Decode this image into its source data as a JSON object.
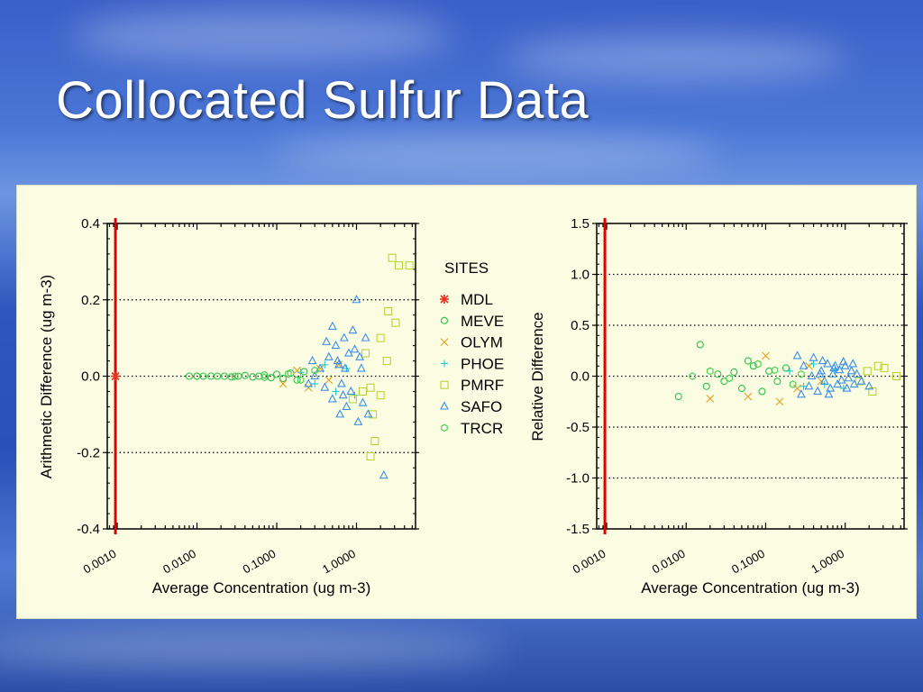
{
  "title": "Collocated Sulfur Data",
  "colors": {
    "MDL": "#e8321e",
    "MEVE": "#2ec04a",
    "OLYM": "#e0a020",
    "PHOE": "#20c8d0",
    "PMRF": "#b8d43a",
    "SAFO": "#3c8ee8",
    "TRCR": "#44cc4c",
    "mdl_line": "#e00000"
  },
  "legend": {
    "title": "SITES",
    "items": [
      {
        "name": "MDL",
        "marker": "asterisk"
      },
      {
        "name": "MEVE",
        "marker": "circle"
      },
      {
        "name": "OLYM",
        "marker": "x"
      },
      {
        "name": "PHOE",
        "marker": "plus"
      },
      {
        "name": "PMRF",
        "marker": "square"
      },
      {
        "name": "SAFO",
        "marker": "triangle"
      },
      {
        "name": "TRCR",
        "marker": "hexagon"
      }
    ]
  },
  "chart_data": [
    {
      "type": "scatter",
      "xlabel": "Average Concentration (ug m-3)",
      "ylabel": "Arithmetic Difference (ug m-3)",
      "xscale": "log",
      "xlim": [
        0.00075,
        5.5
      ],
      "ylim": [
        -0.4,
        0.4
      ],
      "yticks": [
        "0.4",
        "0.2",
        "0.0",
        "-0.2",
        "-0.4"
      ],
      "xticks": [
        "0.0010",
        "0.0100",
        "0.1000",
        "1.0000"
      ],
      "grid": "horizontal dotted",
      "mdl_x": 0.00095,
      "series": [
        {
          "name": "MDL",
          "points": [
            [
              0.00095,
              0.0
            ]
          ]
        },
        {
          "name": "MEVE",
          "points": [
            [
              0.008,
              0.0
            ],
            [
              0.01,
              0.0
            ],
            [
              0.012,
              0.0
            ],
            [
              0.015,
              0.0
            ],
            [
              0.018,
              0.0
            ],
            [
              0.022,
              0.0
            ],
            [
              0.027,
              -0.002
            ],
            [
              0.033,
              0.0
            ],
            [
              0.04,
              0.002
            ],
            [
              0.05,
              -0.002
            ],
            [
              0.06,
              0.0
            ],
            [
              0.07,
              0.003
            ],
            [
              0.085,
              -0.004
            ],
            [
              0.1,
              0.005
            ],
            [
              0.12,
              -0.006
            ],
            [
              0.15,
              0.008
            ],
            [
              0.18,
              -0.01
            ],
            [
              0.22,
              0.012
            ]
          ]
        },
        {
          "name": "OLYM",
          "points": [
            [
              0.12,
              -0.02
            ],
            [
              0.18,
              0.015
            ],
            [
              0.25,
              -0.03
            ],
            [
              0.35,
              0.02
            ],
            [
              0.45,
              -0.01
            ],
            [
              0.6,
              0.03
            ]
          ]
        },
        {
          "name": "PHOE",
          "points": [
            [
              0.2,
              0.01
            ],
            [
              0.3,
              -0.02
            ],
            [
              0.4,
              0.03
            ],
            [
              0.55,
              -0.04
            ],
            [
              0.75,
              0.02
            ],
            [
              0.95,
              -0.05
            ]
          ]
        },
        {
          "name": "PMRF",
          "points": [
            [
              2.8,
              0.31
            ],
            [
              3.4,
              0.29
            ],
            [
              4.6,
              0.29
            ],
            [
              2.5,
              0.17
            ],
            [
              3.1,
              0.14
            ],
            [
              2.0,
              0.1
            ],
            [
              1.6,
              -0.1
            ],
            [
              1.7,
              -0.17
            ],
            [
              1.5,
              -0.21
            ],
            [
              2.4,
              0.04
            ],
            [
              1.3,
              0.06
            ],
            [
              1.5,
              -0.03
            ],
            [
              2.0,
              -0.05
            ],
            [
              1.2,
              -0.04
            ],
            [
              0.9,
              -0.06
            ]
          ]
        },
        {
          "name": "SAFO",
          "points": [
            [
              0.35,
              0.02
            ],
            [
              0.4,
              -0.03
            ],
            [
              0.45,
              0.05
            ],
            [
              0.5,
              -0.06
            ],
            [
              0.55,
              0.08
            ],
            [
              0.6,
              0.03
            ],
            [
              0.65,
              -0.02
            ],
            [
              0.7,
              0.1
            ],
            [
              0.75,
              -0.08
            ],
            [
              0.8,
              0.06
            ],
            [
              0.85,
              -0.04
            ],
            [
              0.9,
              0.12
            ],
            [
              1.0,
              0.2
            ],
            [
              1.1,
              0.05
            ],
            [
              1.2,
              -0.07
            ],
            [
              1.3,
              0.1
            ],
            [
              1.4,
              -0.1
            ],
            [
              0.3,
              0.0
            ],
            [
              0.28,
              0.04
            ],
            [
              0.5,
              0.13
            ],
            [
              0.62,
              -0.1
            ],
            [
              0.72,
              0.02
            ],
            [
              1.05,
              -0.12
            ],
            [
              1.15,
              0.02
            ],
            [
              2.2,
              -0.26
            ],
            [
              0.25,
              -0.02
            ],
            [
              0.42,
              0.09
            ],
            [
              0.95,
              0.07
            ],
            [
              0.58,
              0.04
            ],
            [
              0.68,
              -0.05
            ]
          ]
        },
        {
          "name": "TRCR",
          "points": [
            [
              0.01,
              0.0
            ],
            [
              0.03,
              0.0
            ],
            [
              0.07,
              -0.003
            ],
            [
              0.14,
              0.006
            ],
            [
              0.2,
              -0.01
            ],
            [
              0.3,
              0.015
            ]
          ]
        }
      ]
    },
    {
      "type": "scatter",
      "xlabel": "Average Concentration (ug m-3)",
      "ylabel": "Relative Difference",
      "xscale": "log",
      "xlim": [
        0.00075,
        5.5
      ],
      "ylim": [
        -1.5,
        1.5
      ],
      "yticks": [
        "1.5",
        "1.0",
        "0.5",
        "0.0",
        "-0.5",
        "-1.0",
        "-1.5"
      ],
      "xticks": [
        "0.0010",
        "0.0100",
        "0.1000",
        "1.0000"
      ],
      "grid": "horizontal dotted",
      "mdl_x": 0.00095,
      "series": [
        {
          "name": "MEVE",
          "points": [
            [
              0.008,
              -0.2
            ],
            [
              0.015,
              0.31
            ],
            [
              0.018,
              -0.1
            ],
            [
              0.025,
              0.02
            ],
            [
              0.04,
              0.04
            ],
            [
              0.05,
              -0.12
            ],
            [
              0.07,
              0.1
            ],
            [
              0.09,
              -0.15
            ],
            [
              0.11,
              0.05
            ],
            [
              0.14,
              -0.05
            ],
            [
              0.18,
              0.08
            ],
            [
              0.03,
              -0.05
            ],
            [
              0.06,
              0.15
            ]
          ]
        },
        {
          "name": "OLYM",
          "points": [
            [
              0.02,
              -0.22
            ],
            [
              0.06,
              -0.2
            ],
            [
              0.1,
              0.2
            ],
            [
              0.15,
              -0.25
            ],
            [
              0.25,
              -0.12
            ],
            [
              0.35,
              0.1
            ],
            [
              0.5,
              -0.05
            ]
          ]
        },
        {
          "name": "PHOE",
          "points": [
            [
              0.2,
              0.05
            ],
            [
              0.3,
              -0.1
            ],
            [
              0.4,
              0.12
            ],
            [
              0.55,
              -0.08
            ],
            [
              0.75,
              0.06
            ],
            [
              0.95,
              -0.12
            ]
          ]
        },
        {
          "name": "PMRF",
          "points": [
            [
              2.6,
              0.1
            ],
            [
              3.1,
              0.08
            ],
            [
              2.2,
              -0.15
            ],
            [
              1.5,
              -0.05
            ],
            [
              4.4,
              0.0
            ],
            [
              1.9,
              0.05
            ]
          ]
        },
        {
          "name": "SAFO",
          "points": [
            [
              0.3,
              0.1
            ],
            [
              0.35,
              -0.1
            ],
            [
              0.4,
              0.18
            ],
            [
              0.45,
              -0.15
            ],
            [
              0.5,
              0.05
            ],
            [
              0.55,
              -0.05
            ],
            [
              0.6,
              0.12
            ],
            [
              0.65,
              -0.12
            ],
            [
              0.7,
              0.02
            ],
            [
              0.75,
              0.1
            ],
            [
              0.8,
              -0.08
            ],
            [
              0.85,
              0.06
            ],
            [
              0.9,
              -0.04
            ],
            [
              1.0,
              0.1
            ],
            [
              1.1,
              -0.02
            ],
            [
              1.2,
              0.05
            ],
            [
              1.3,
              -0.08
            ],
            [
              1.4,
              0.02
            ],
            [
              0.25,
              0.2
            ],
            [
              0.28,
              -0.18
            ],
            [
              0.48,
              0.02
            ],
            [
              0.52,
              0.15
            ],
            [
              0.62,
              -0.18
            ],
            [
              0.72,
              0.08
            ],
            [
              0.95,
              0.14
            ],
            [
              1.05,
              -0.12
            ],
            [
              1.25,
              0.12
            ],
            [
              1.6,
              -0.05
            ],
            [
              2.0,
              -0.1
            ],
            [
              0.38,
              0.0
            ]
          ]
        },
        {
          "name": "TRCR",
          "points": [
            [
              0.012,
              0.0
            ],
            [
              0.02,
              0.05
            ],
            [
              0.035,
              -0.02
            ],
            [
              0.08,
              0.12
            ],
            [
              0.13,
              0.06
            ],
            [
              0.22,
              -0.08
            ],
            [
              0.28,
              0.02
            ]
          ]
        }
      ]
    }
  ]
}
